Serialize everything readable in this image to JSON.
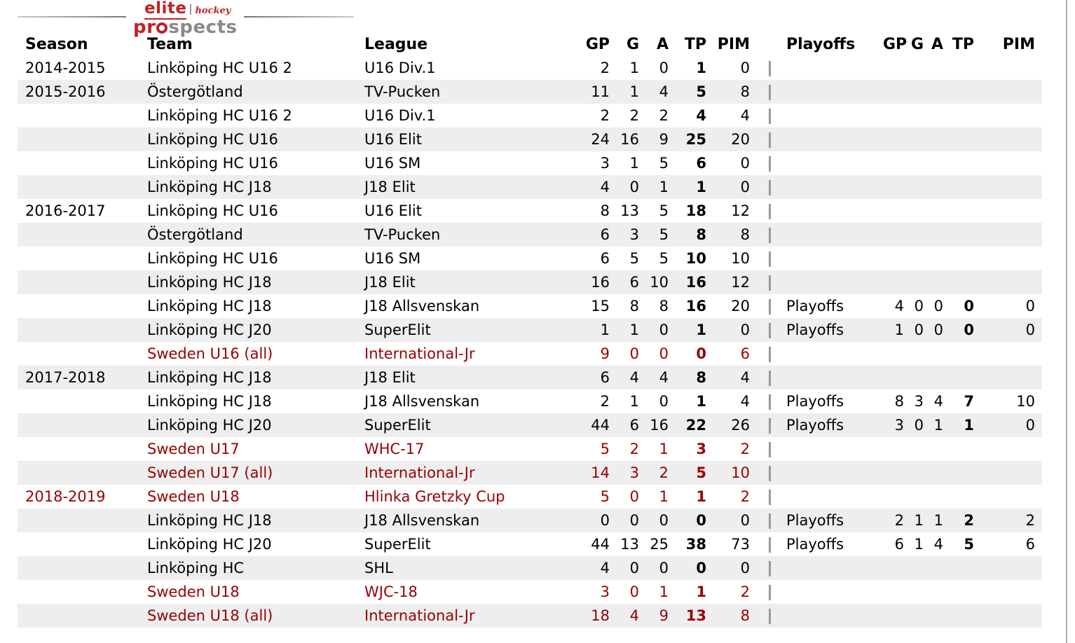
{
  "logo": {
    "elite": "elite",
    "hockey": "hockey",
    "pro": "pr",
    "spects": "spects"
  },
  "colors": {
    "international_red": "#990000",
    "row_stripe": "#eeeeee",
    "divider_gray": "#999999",
    "logo_red": "#c22026",
    "logo_gray": "#8a8a8a"
  },
  "table": {
    "headers": {
      "season": "Season",
      "team": "Team",
      "league": "League",
      "gp": "GP",
      "g": "G",
      "a": "A",
      "tp": "TP",
      "pim": "PIM",
      "playoffs": "Playoffs",
      "p_gp": "GP",
      "p_g": "G",
      "p_a": "A",
      "p_tp": "TP",
      "p_pim": "PIM"
    },
    "rows": [
      {
        "season": "2014-2015",
        "team": "Linköping HC U16 2",
        "league": "U16 Div.1",
        "gp": "2",
        "g": "1",
        "a": "0",
        "tp": "1",
        "pim": "0",
        "playoffs": "",
        "p_gp": "",
        "p_g": "",
        "p_a": "",
        "p_tp": "",
        "p_pim": "",
        "red": false
      },
      {
        "season": "2015-2016",
        "team": "Östergötland",
        "league": "TV-Pucken",
        "gp": "11",
        "g": "1",
        "a": "4",
        "tp": "5",
        "pim": "8",
        "playoffs": "",
        "p_gp": "",
        "p_g": "",
        "p_a": "",
        "p_tp": "",
        "p_pim": "",
        "red": false
      },
      {
        "season": "",
        "team": "Linköping HC U16 2",
        "league": "U16 Div.1",
        "gp": "2",
        "g": "2",
        "a": "2",
        "tp": "4",
        "pim": "4",
        "playoffs": "",
        "p_gp": "",
        "p_g": "",
        "p_a": "",
        "p_tp": "",
        "p_pim": "",
        "red": false
      },
      {
        "season": "",
        "team": "Linköping HC U16",
        "league": "U16 Elit",
        "gp": "24",
        "g": "16",
        "a": "9",
        "tp": "25",
        "pim": "20",
        "playoffs": "",
        "p_gp": "",
        "p_g": "",
        "p_a": "",
        "p_tp": "",
        "p_pim": "",
        "red": false
      },
      {
        "season": "",
        "team": "Linköping HC U16",
        "league": "U16 SM",
        "gp": "3",
        "g": "1",
        "a": "5",
        "tp": "6",
        "pim": "0",
        "playoffs": "",
        "p_gp": "",
        "p_g": "",
        "p_a": "",
        "p_tp": "",
        "p_pim": "",
        "red": false
      },
      {
        "season": "",
        "team": "Linköping HC J18",
        "league": "J18 Elit",
        "gp": "4",
        "g": "0",
        "a": "1",
        "tp": "1",
        "pim": "0",
        "playoffs": "",
        "p_gp": "",
        "p_g": "",
        "p_a": "",
        "p_tp": "",
        "p_pim": "",
        "red": false
      },
      {
        "season": "2016-2017",
        "team": "Linköping HC U16",
        "league": "U16 Elit",
        "gp": "8",
        "g": "13",
        "a": "5",
        "tp": "18",
        "pim": "12",
        "playoffs": "",
        "p_gp": "",
        "p_g": "",
        "p_a": "",
        "p_tp": "",
        "p_pim": "",
        "red": false
      },
      {
        "season": "",
        "team": "Östergötland",
        "league": "TV-Pucken",
        "gp": "6",
        "g": "3",
        "a": "5",
        "tp": "8",
        "pim": "8",
        "playoffs": "",
        "p_gp": "",
        "p_g": "",
        "p_a": "",
        "p_tp": "",
        "p_pim": "",
        "red": false
      },
      {
        "season": "",
        "team": "Linköping HC U16",
        "league": "U16 SM",
        "gp": "6",
        "g": "5",
        "a": "5",
        "tp": "10",
        "pim": "10",
        "playoffs": "",
        "p_gp": "",
        "p_g": "",
        "p_a": "",
        "p_tp": "",
        "p_pim": "",
        "red": false
      },
      {
        "season": "",
        "team": "Linköping HC J18",
        "league": "J18 Elit",
        "gp": "16",
        "g": "6",
        "a": "10",
        "tp": "16",
        "pim": "12",
        "playoffs": "",
        "p_gp": "",
        "p_g": "",
        "p_a": "",
        "p_tp": "",
        "p_pim": "",
        "red": false
      },
      {
        "season": "",
        "team": "Linköping HC J18",
        "league": "J18 Allsvenskan",
        "gp": "15",
        "g": "8",
        "a": "8",
        "tp": "16",
        "pim": "20",
        "playoffs": "Playoffs",
        "p_gp": "4",
        "p_g": "0",
        "p_a": "0",
        "p_tp": "0",
        "p_pim": "0",
        "red": false
      },
      {
        "season": "",
        "team": "Linköping HC J20",
        "league": "SuperElit",
        "gp": "1",
        "g": "1",
        "a": "0",
        "tp": "1",
        "pim": "0",
        "playoffs": "Playoffs",
        "p_gp": "1",
        "p_g": "0",
        "p_a": "0",
        "p_tp": "0",
        "p_pim": "0",
        "red": false
      },
      {
        "season": "",
        "team": "Sweden U16 (all)",
        "league": "International-Jr",
        "gp": "9",
        "g": "0",
        "a": "0",
        "tp": "0",
        "pim": "6",
        "playoffs": "",
        "p_gp": "",
        "p_g": "",
        "p_a": "",
        "p_tp": "",
        "p_pim": "",
        "red": true
      },
      {
        "season": "2017-2018",
        "team": "Linköping HC J18",
        "league": "J18 Elit",
        "gp": "6",
        "g": "4",
        "a": "4",
        "tp": "8",
        "pim": "4",
        "playoffs": "",
        "p_gp": "",
        "p_g": "",
        "p_a": "",
        "p_tp": "",
        "p_pim": "",
        "red": false
      },
      {
        "season": "",
        "team": "Linköping HC J18",
        "league": "J18 Allsvenskan",
        "gp": "2",
        "g": "1",
        "a": "0",
        "tp": "1",
        "pim": "4",
        "playoffs": "Playoffs",
        "p_gp": "8",
        "p_g": "3",
        "p_a": "4",
        "p_tp": "7",
        "p_pim": "10",
        "red": false
      },
      {
        "season": "",
        "team": "Linköping HC J20",
        "league": "SuperElit",
        "gp": "44",
        "g": "6",
        "a": "16",
        "tp": "22",
        "pim": "26",
        "playoffs": "Playoffs",
        "p_gp": "3",
        "p_g": "0",
        "p_a": "1",
        "p_tp": "1",
        "p_pim": "0",
        "red": false
      },
      {
        "season": "",
        "team": "Sweden U17",
        "league": "WHC-17",
        "gp": "5",
        "g": "2",
        "a": "1",
        "tp": "3",
        "pim": "2",
        "playoffs": "",
        "p_gp": "",
        "p_g": "",
        "p_a": "",
        "p_tp": "",
        "p_pim": "",
        "red": true
      },
      {
        "season": "",
        "team": "Sweden U17 (all)",
        "league": "International-Jr",
        "gp": "14",
        "g": "3",
        "a": "2",
        "tp": "5",
        "pim": "10",
        "playoffs": "",
        "p_gp": "",
        "p_g": "",
        "p_a": "",
        "p_tp": "",
        "p_pim": "",
        "red": true
      },
      {
        "season": "2018-2019",
        "team": "Sweden U18",
        "league": "Hlinka Gretzky Cup",
        "gp": "5",
        "g": "0",
        "a": "1",
        "tp": "1",
        "pim": "2",
        "playoffs": "",
        "p_gp": "",
        "p_g": "",
        "p_a": "",
        "p_tp": "",
        "p_pim": "",
        "red": true
      },
      {
        "season": "",
        "team": "Linköping HC J18",
        "league": "J18 Allsvenskan",
        "gp": "0",
        "g": "0",
        "a": "0",
        "tp": "0",
        "pim": "0",
        "playoffs": "Playoffs",
        "p_gp": "2",
        "p_g": "1",
        "p_a": "1",
        "p_tp": "2",
        "p_pim": "2",
        "red": false
      },
      {
        "season": "",
        "team": "Linköping HC J20",
        "league": "SuperElit",
        "gp": "44",
        "g": "13",
        "a": "25",
        "tp": "38",
        "pim": "73",
        "playoffs": "Playoffs",
        "p_gp": "6",
        "p_g": "1",
        "p_a": "4",
        "p_tp": "5",
        "p_pim": "6",
        "red": false
      },
      {
        "season": "",
        "team": "Linköping HC",
        "league": "SHL",
        "gp": "4",
        "g": "0",
        "a": "0",
        "tp": "0",
        "pim": "0",
        "playoffs": "",
        "p_gp": "",
        "p_g": "",
        "p_a": "",
        "p_tp": "",
        "p_pim": "",
        "red": false
      },
      {
        "season": "",
        "team": "Sweden U18",
        "league": "WJC-18",
        "gp": "3",
        "g": "0",
        "a": "1",
        "tp": "1",
        "pim": "2",
        "playoffs": "",
        "p_gp": "",
        "p_g": "",
        "p_a": "",
        "p_tp": "",
        "p_pim": "",
        "red": true
      },
      {
        "season": "",
        "team": "Sweden U18 (all)",
        "league": "International-Jr",
        "gp": "18",
        "g": "4",
        "a": "9",
        "tp": "13",
        "pim": "8",
        "playoffs": "",
        "p_gp": "",
        "p_g": "",
        "p_a": "",
        "p_tp": "",
        "p_pim": "",
        "red": true
      }
    ]
  }
}
